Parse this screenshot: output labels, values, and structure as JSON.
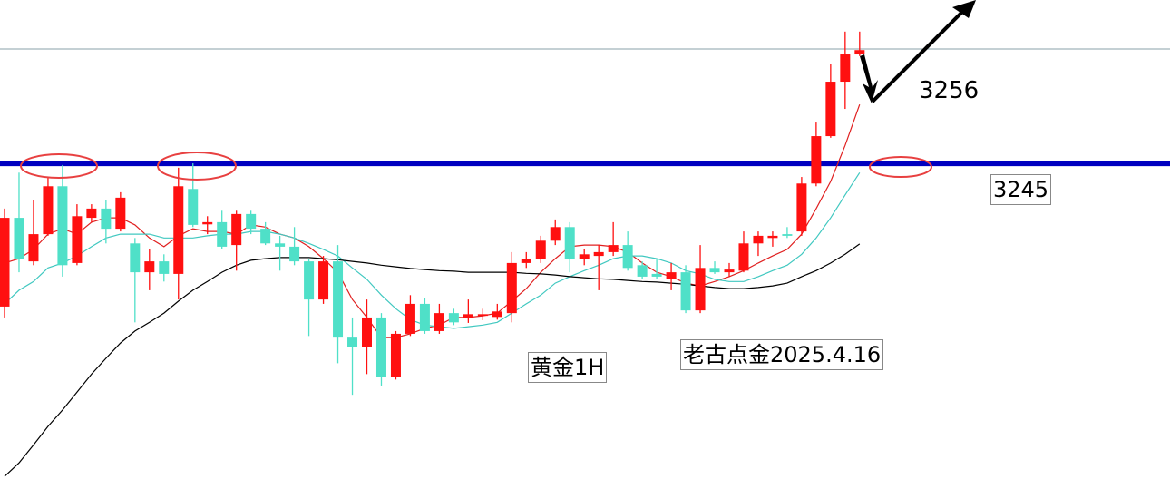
{
  "chart_data": {
    "type": "candlestick",
    "ylim": [
      3185.2,
      3275
    ],
    "up_color": "#ff1010",
    "down_color": "#4fe0c8",
    "open": [
      3218.7,
      3235.0,
      3227.0,
      3232.0,
      3240.8,
      3226.7,
      3235.0,
      3236.7,
      3233.0,
      3230.3,
      3225.0,
      3227.0,
      3224.7,
      3240.3,
      3233.8,
      3234.2,
      3230.0,
      3235.7,
      3233.0,
      3230.3,
      3229.7,
      3227.0,
      3220.0,
      3227.0,
      3213.0,
      3211.3,
      3216.7,
      3205.8,
      3213.7,
      3219.2,
      3214.2,
      3217.5,
      3216.7,
      3217.0,
      3216.8,
      3217.5,
      3226.7,
      3227.5,
      3230.8,
      3233.3,
      3227.5,
      3228.0,
      3228.7,
      3230.0,
      3226.3,
      3224.7,
      3223.8,
      3225.0,
      3218.0,
      3225.8,
      3225.0,
      3225.3,
      3230.3,
      3231.3,
      3232.0,
      3232.5,
      3241.3,
      3250.0,
      3260.0,
      3265.0
    ],
    "high": [
      3236.7,
      3243.3,
      3238.3,
      3242.5,
      3244.7,
      3237.5,
      3237.5,
      3238.3,
      3239.7,
      3231.3,
      3229.2,
      3228.3,
      3244.2,
      3245.0,
      3235.3,
      3236.3,
      3236.3,
      3236.3,
      3234.2,
      3231.7,
      3233.3,
      3227.5,
      3228.0,
      3230.0,
      3216.7,
      3220.0,
      3217.5,
      3214.2,
      3220.8,
      3220.3,
      3219.2,
      3218.3,
      3220.0,
      3218.3,
      3219.2,
      3228.7,
      3228.7,
      3231.7,
      3234.7,
      3234.2,
      3229.2,
      3230.0,
      3234.2,
      3232.5,
      3227.0,
      3227.5,
      3226.7,
      3226.3,
      3230.0,
      3227.0,
      3226.7,
      3232.5,
      3232.5,
      3232.5,
      3233.3,
      3242.5,
      3252.5,
      3263.3,
      3269.2,
      3269.2
    ],
    "low": [
      3216.7,
      3225.0,
      3226.3,
      3231.7,
      3224.2,
      3226.3,
      3234.2,
      3230.3,
      3232.5,
      3215.8,
      3221.7,
      3223.3,
      3220.0,
      3233.3,
      3232.0,
      3229.2,
      3225.3,
      3232.0,
      3230.0,
      3225.3,
      3226.3,
      3213.3,
      3219.2,
      3208.3,
      3202.5,
      3206.3,
      3204.2,
      3205.3,
      3213.3,
      3213.7,
      3213.7,
      3215.3,
      3215.7,
      3216.2,
      3216.3,
      3215.8,
      3225.8,
      3226.7,
      3230.0,
      3225.0,
      3226.3,
      3221.7,
      3228.0,
      3225.3,
      3223.7,
      3223.7,
      3221.7,
      3217.5,
      3217.5,
      3224.7,
      3224.2,
      3225.0,
      3228.0,
      3229.7,
      3231.3,
      3231.7,
      3240.8,
      3249.7,
      3255.0,
      3264.7
    ],
    "close": [
      3235.0,
      3227.5,
      3232.0,
      3240.8,
      3226.3,
      3235.3,
      3236.7,
      3233.0,
      3238.7,
      3225.0,
      3227.0,
      3224.7,
      3240.8,
      3233.7,
      3234.2,
      3229.7,
      3235.7,
      3233.0,
      3230.3,
      3229.7,
      3227.0,
      3220.0,
      3227.0,
      3213.0,
      3211.3,
      3216.7,
      3205.8,
      3213.7,
      3219.2,
      3214.2,
      3217.5,
      3215.8,
      3217.3,
      3217.3,
      3217.8,
      3226.7,
      3227.5,
      3230.8,
      3233.3,
      3227.5,
      3228.3,
      3228.7,
      3230.0,
      3225.8,
      3224.2,
      3224.2,
      3225.0,
      3218.0,
      3225.8,
      3225.0,
      3225.5,
      3230.3,
      3231.7,
      3231.7,
      3231.7,
      3241.3,
      3250.0,
      3260.0,
      3265.0,
      3265.8
    ],
    "series": [
      {
        "color": "#e02020",
        "values": [
          3226.7,
          3227.5,
          3229.2,
          3232.0,
          3233.0,
          3232.0,
          3234.2,
          3235.0,
          3235.0,
          3233.7,
          3231.3,
          3229.7,
          3231.7,
          3233.0,
          3232.5,
          3232.5,
          3232.0,
          3233.7,
          3233.3,
          3232.0,
          3231.3,
          3229.7,
          3227.5,
          3225.0,
          3220.0,
          3216.7,
          3213.0,
          3213.0,
          3213.7,
          3214.7,
          3215.3,
          3216.7,
          3216.7,
          3217.0,
          3217.5,
          3219.7,
          3222.0,
          3225.0,
          3227.5,
          3229.7,
          3230.0,
          3230.0,
          3229.7,
          3228.7,
          3226.7,
          3225.0,
          3224.2,
          3223.0,
          3222.5,
          3223.3,
          3224.2,
          3225.3,
          3226.7,
          3228.0,
          3229.2,
          3232.0,
          3236.7,
          3241.7,
          3248.3,
          3255.8
        ]
      },
      {
        "color": "#40c8c0",
        "values": [
          3219.2,
          3221.7,
          3223.3,
          3225.8,
          3226.7,
          3228.0,
          3229.7,
          3231.3,
          3232.0,
          3232.0,
          3232.0,
          3231.3,
          3231.3,
          3231.3,
          3231.7,
          3232.0,
          3232.0,
          3232.5,
          3232.5,
          3232.0,
          3231.3,
          3230.3,
          3229.2,
          3228.0,
          3225.8,
          3223.7,
          3220.8,
          3218.3,
          3216.3,
          3215.3,
          3215.0,
          3214.7,
          3215.0,
          3215.3,
          3215.8,
          3217.5,
          3219.2,
          3220.8,
          3223.0,
          3224.2,
          3225.3,
          3226.3,
          3227.5,
          3228.0,
          3228.0,
          3227.5,
          3226.7,
          3225.3,
          3224.7,
          3223.7,
          3223.3,
          3223.3,
          3224.2,
          3225.3,
          3226.3,
          3228.3,
          3231.3,
          3235.0,
          3239.2,
          3243.3
        ]
      },
      {
        "color": "#000000",
        "values": [
          3187.5,
          3190.0,
          3193.3,
          3196.7,
          3199.7,
          3203.0,
          3206.3,
          3209.2,
          3212.0,
          3214.2,
          3215.8,
          3217.5,
          3219.7,
          3221.7,
          3223.3,
          3225.0,
          3226.3,
          3227.2,
          3227.5,
          3227.7,
          3227.7,
          3227.7,
          3227.5,
          3227.3,
          3227.0,
          3226.7,
          3226.3,
          3226.0,
          3225.7,
          3225.5,
          3225.3,
          3225.2,
          3225.0,
          3225.0,
          3225.0,
          3225.0,
          3224.8,
          3224.7,
          3224.5,
          3224.2,
          3224.0,
          3223.8,
          3223.7,
          3223.5,
          3223.3,
          3223.2,
          3223.0,
          3222.8,
          3222.5,
          3222.2,
          3222.0,
          3222.0,
          3222.2,
          3222.5,
          3223.0,
          3224.2,
          3225.3,
          3226.7,
          3228.3,
          3230.2
        ]
      }
    ],
    "levels": [
      {
        "value": 3245,
        "color": "#0000c0"
      },
      {
        "value": 3266,
        "color": "#8aa0a8"
      }
    ],
    "target": 3256,
    "annotations": [
      "黄金1H",
      "老古点金2025.4.16"
    ]
  }
}
